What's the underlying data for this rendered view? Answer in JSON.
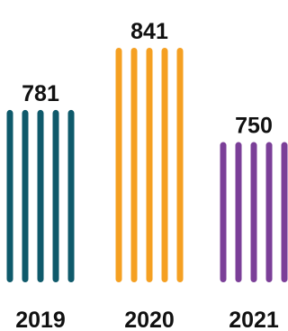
{
  "chart_data": {
    "type": "bar",
    "categories": [
      "2019",
      "2020",
      "2021"
    ],
    "values": [
      781,
      841,
      750
    ],
    "value_labels": [
      "781",
      "841",
      "750"
    ],
    "colors": [
      "#0f5a6b",
      "#f5a022",
      "#7b3f98"
    ],
    "title": "",
    "xlabel": "",
    "ylabel": "",
    "grid": false,
    "legend": "none"
  }
}
